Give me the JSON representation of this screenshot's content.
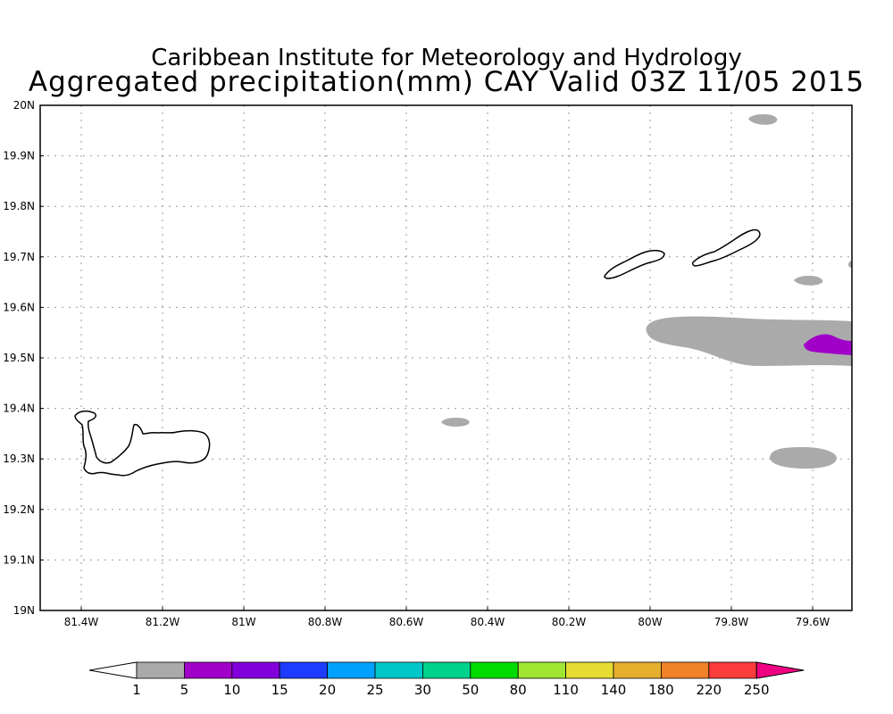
{
  "header": {
    "title": "Caribbean Institute for Meteorology and Hydrology",
    "subtitle": "Aggregated precipitation(mm) CAY Valid 03Z 11/05 2015"
  },
  "axes": {
    "x_ticks": [
      "81.4W",
      "81.2W",
      "81W",
      "80.8W",
      "80.6W",
      "80.4W",
      "80.2W",
      "80W",
      "79.8W",
      "79.6W"
    ],
    "y_ticks": [
      "20N",
      "19.9N",
      "19.8N",
      "19.7N",
      "19.6N",
      "19.5N",
      "19.4N",
      "19.3N",
      "19.2N",
      "19.1N",
      "19N"
    ],
    "grid": true
  },
  "colorbar": {
    "labels": [
      "1",
      "5",
      "10",
      "15",
      "20",
      "25",
      "30",
      "50",
      "80",
      "110",
      "140",
      "180",
      "220",
      "250"
    ],
    "colors": [
      "#aaaaaa",
      "#a000c8",
      "#8200dc",
      "#1e3cff",
      "#00a0ff",
      "#00c8c8",
      "#00d28c",
      "#00dc00",
      "#a0e632",
      "#e6dc32",
      "#e6af2d",
      "#f08228",
      "#fa3c3c",
      "#f00082"
    ],
    "under_color": "#ffffff",
    "over_color": "#f00082"
  },
  "map_features": {
    "land_outline_color": "#000000",
    "islands": [
      "grand-cayman",
      "little-cayman",
      "cayman-brac"
    ],
    "precip_areas": [
      {
        "name": "precip-east-band",
        "category": "1-5",
        "color": "#aaaaaa"
      },
      {
        "name": "precip-east-core",
        "category": "5-10",
        "color": "#a000c8"
      },
      {
        "name": "precip-southeast-blob",
        "category": "1-5",
        "color": "#aaaaaa"
      },
      {
        "name": "precip-central-blob",
        "category": "1-5",
        "color": "#aaaaaa"
      },
      {
        "name": "precip-northeast-blob",
        "category": "1-5",
        "color": "#aaaaaa"
      },
      {
        "name": "precip-east-small-blob",
        "category": "1-5",
        "color": "#aaaaaa"
      }
    ]
  }
}
